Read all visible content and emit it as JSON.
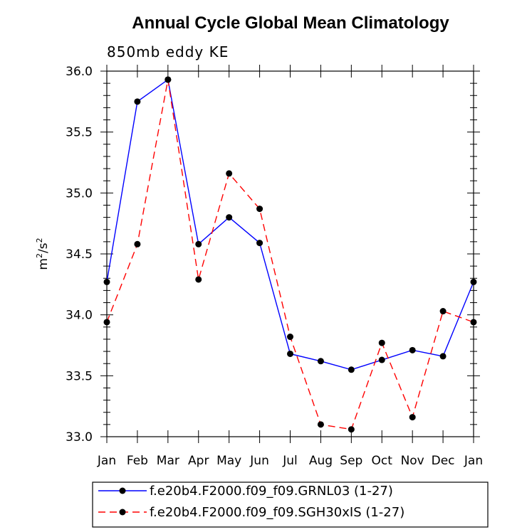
{
  "chart_data": {
    "type": "line",
    "title": "Annual Cycle Global Mean Climatology",
    "subtitle": "850mb eddy KE",
    "ylabel": "m2/s2",
    "ylabel_base": "m",
    "ylabel_exp1": "2",
    "ylabel_mid": "/s",
    "ylabel_exp2": "2",
    "categories": [
      "Jan",
      "Feb",
      "Mar",
      "Apr",
      "May",
      "Jun",
      "Jul",
      "Aug",
      "Sep",
      "Oct",
      "Nov",
      "Dec",
      "Jan"
    ],
    "ylim": [
      33.0,
      36.0
    ],
    "yticks": [
      "33.0",
      "33.5",
      "34.0",
      "34.5",
      "35.0",
      "35.5",
      "36.0"
    ],
    "series": [
      {
        "name": "f.e20b4.F2000.f09_f09.GRNL03 (1-27)",
        "color": "#0000ff",
        "dash": "solid",
        "values": [
          34.27,
          35.75,
          35.93,
          34.58,
          34.8,
          34.59,
          33.68,
          33.62,
          33.55,
          33.63,
          33.71,
          33.66,
          34.27
        ]
      },
      {
        "name": "f.e20b4.F2000.f09_f09.SGH30xIS (1-27)",
        "color": "#ff0000",
        "dash": "dashed",
        "values": [
          33.94,
          34.58,
          35.93,
          34.29,
          35.16,
          34.87,
          33.82,
          33.1,
          33.06,
          33.77,
          33.16,
          34.03,
          33.94
        ]
      }
    ]
  }
}
